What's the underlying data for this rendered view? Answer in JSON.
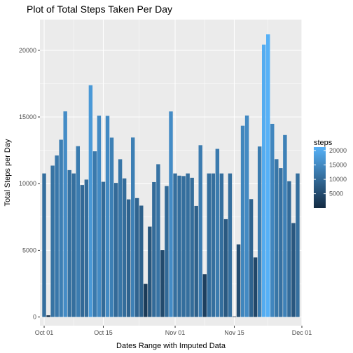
{
  "chart_data": {
    "type": "bar",
    "title": "Plot of Total Steps Taken Per Day",
    "xlabel": "Dates Range with Imputed Data",
    "ylabel": "Total Steps per Day",
    "x_tick_labels": [
      "Oct 01",
      "Oct 15",
      "Nov 01",
      "Nov 15",
      "Dec 01"
    ],
    "x_tick_dates": [
      "2012-10-01",
      "2012-10-15",
      "2012-11-01",
      "2012-11-15",
      "2012-12-01"
    ],
    "xlim": [
      "2012-09-30",
      "2012-12-01"
    ],
    "y_ticks": [
      0,
      5000,
      10000,
      15000,
      20000
    ],
    "ylim": [
      -650,
      22300
    ],
    "grid": true,
    "panel_background": "#ebebeb",
    "legend": {
      "title": "steps",
      "position": "right",
      "labels": [
        20000,
        15000,
        10000,
        5000
      ],
      "min": 41,
      "max": 21194,
      "color_low": "#132b43",
      "color_high": "#56b1f7"
    },
    "series": [
      {
        "x": [
          "2012-10-01",
          "2012-10-02",
          "2012-10-03",
          "2012-10-04",
          "2012-10-05",
          "2012-10-06",
          "2012-10-07",
          "2012-10-08",
          "2012-10-09",
          "2012-10-10",
          "2012-10-11",
          "2012-10-12",
          "2012-10-13",
          "2012-10-14",
          "2012-10-15",
          "2012-10-16",
          "2012-10-17",
          "2012-10-18",
          "2012-10-19",
          "2012-10-20",
          "2012-10-21",
          "2012-10-22",
          "2012-10-23",
          "2012-10-24",
          "2012-10-25",
          "2012-10-26",
          "2012-10-27",
          "2012-10-28",
          "2012-10-29",
          "2012-10-30",
          "2012-10-31",
          "2012-11-01",
          "2012-11-02",
          "2012-11-03",
          "2012-11-04",
          "2012-11-05",
          "2012-11-06",
          "2012-11-07",
          "2012-11-08",
          "2012-11-09",
          "2012-11-10",
          "2012-11-11",
          "2012-11-12",
          "2012-11-13",
          "2012-11-14",
          "2012-11-15",
          "2012-11-16",
          "2012-11-17",
          "2012-11-18",
          "2012-11-19",
          "2012-11-20",
          "2012-11-21",
          "2012-11-22",
          "2012-11-23",
          "2012-11-24",
          "2012-11-25",
          "2012-11-26",
          "2012-11-27",
          "2012-11-28",
          "2012-11-29",
          "2012-11-30"
        ],
        "values": [
          10766,
          126,
          11352,
          12116,
          13294,
          15420,
          11015,
          10766,
          12811,
          9900,
          10304,
          17382,
          12426,
          15098,
          10139,
          15084,
          13452,
          10056,
          11829,
          10395,
          8821,
          13460,
          8918,
          8355,
          2492,
          6778,
          10119,
          11458,
          5018,
          9819,
          15414,
          10766,
          10600,
          10571,
          10766,
          10439,
          8334,
          12883,
          3219,
          10766,
          10766,
          12608,
          10765,
          7336,
          10766,
          41,
          5441,
          14339,
          15110,
          8841,
          4472,
          12787,
          20427,
          21194,
          14478,
          11834,
          11162,
          13646,
          10183,
          7047,
          10766
        ]
      }
    ]
  }
}
